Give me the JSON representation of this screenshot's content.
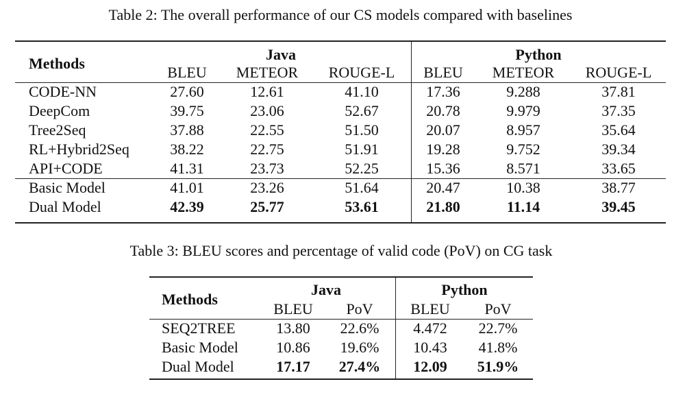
{
  "table2": {
    "caption": "Table 2: The overall performance of our CS models compared with baselines",
    "header": {
      "methods": "Methods",
      "groups": [
        "Java",
        "Python"
      ],
      "metrics": [
        "BLEU",
        "METEOR",
        "ROUGE-L",
        "BLEU",
        "METEOR",
        "ROUGE-L"
      ]
    },
    "row_groups": [
      [
        [
          "CODE-NN",
          "27.60",
          "12.61",
          "41.10",
          "17.36",
          "9.288",
          "37.81"
        ],
        [
          "DeepCom",
          "39.75",
          "23.06",
          "52.67",
          "20.78",
          "9.979",
          "37.35"
        ],
        [
          "Tree2Seq",
          "37.88",
          "22.55",
          "51.50",
          "20.07",
          "8.957",
          "35.64"
        ],
        [
          "RL+Hybrid2Seq",
          "38.22",
          "22.75",
          "51.91",
          "19.28",
          "9.752",
          "39.34"
        ],
        [
          "API+CODE",
          "41.31",
          "23.73",
          "52.25",
          "15.36",
          "8.571",
          "33.65"
        ]
      ],
      [
        [
          "Basic Model",
          "41.01",
          "23.26",
          "51.64",
          "20.47",
          "10.38",
          "38.77"
        ],
        [
          "Dual Model",
          "42.39",
          "25.77",
          "53.61",
          "21.80",
          "11.14",
          "39.45"
        ]
      ]
    ]
  },
  "table3": {
    "caption": "Table 3: BLEU scores and percentage of valid code (PoV) on CG task",
    "header": {
      "methods": "Methods",
      "groups": [
        "Java",
        "Python"
      ],
      "metrics": [
        "BLEU",
        "PoV",
        "BLEU",
        "PoV"
      ]
    },
    "row_groups": [
      [
        [
          "SEQ2TREE",
          "13.80",
          "22.6%",
          "4.472",
          "22.7%"
        ],
        [
          "Basic Model",
          "10.86",
          "19.6%",
          "10.43",
          "41.8%"
        ],
        [
          "Dual Model",
          "17.17",
          "27.4%",
          "12.09",
          "51.9%"
        ]
      ]
    ]
  }
}
